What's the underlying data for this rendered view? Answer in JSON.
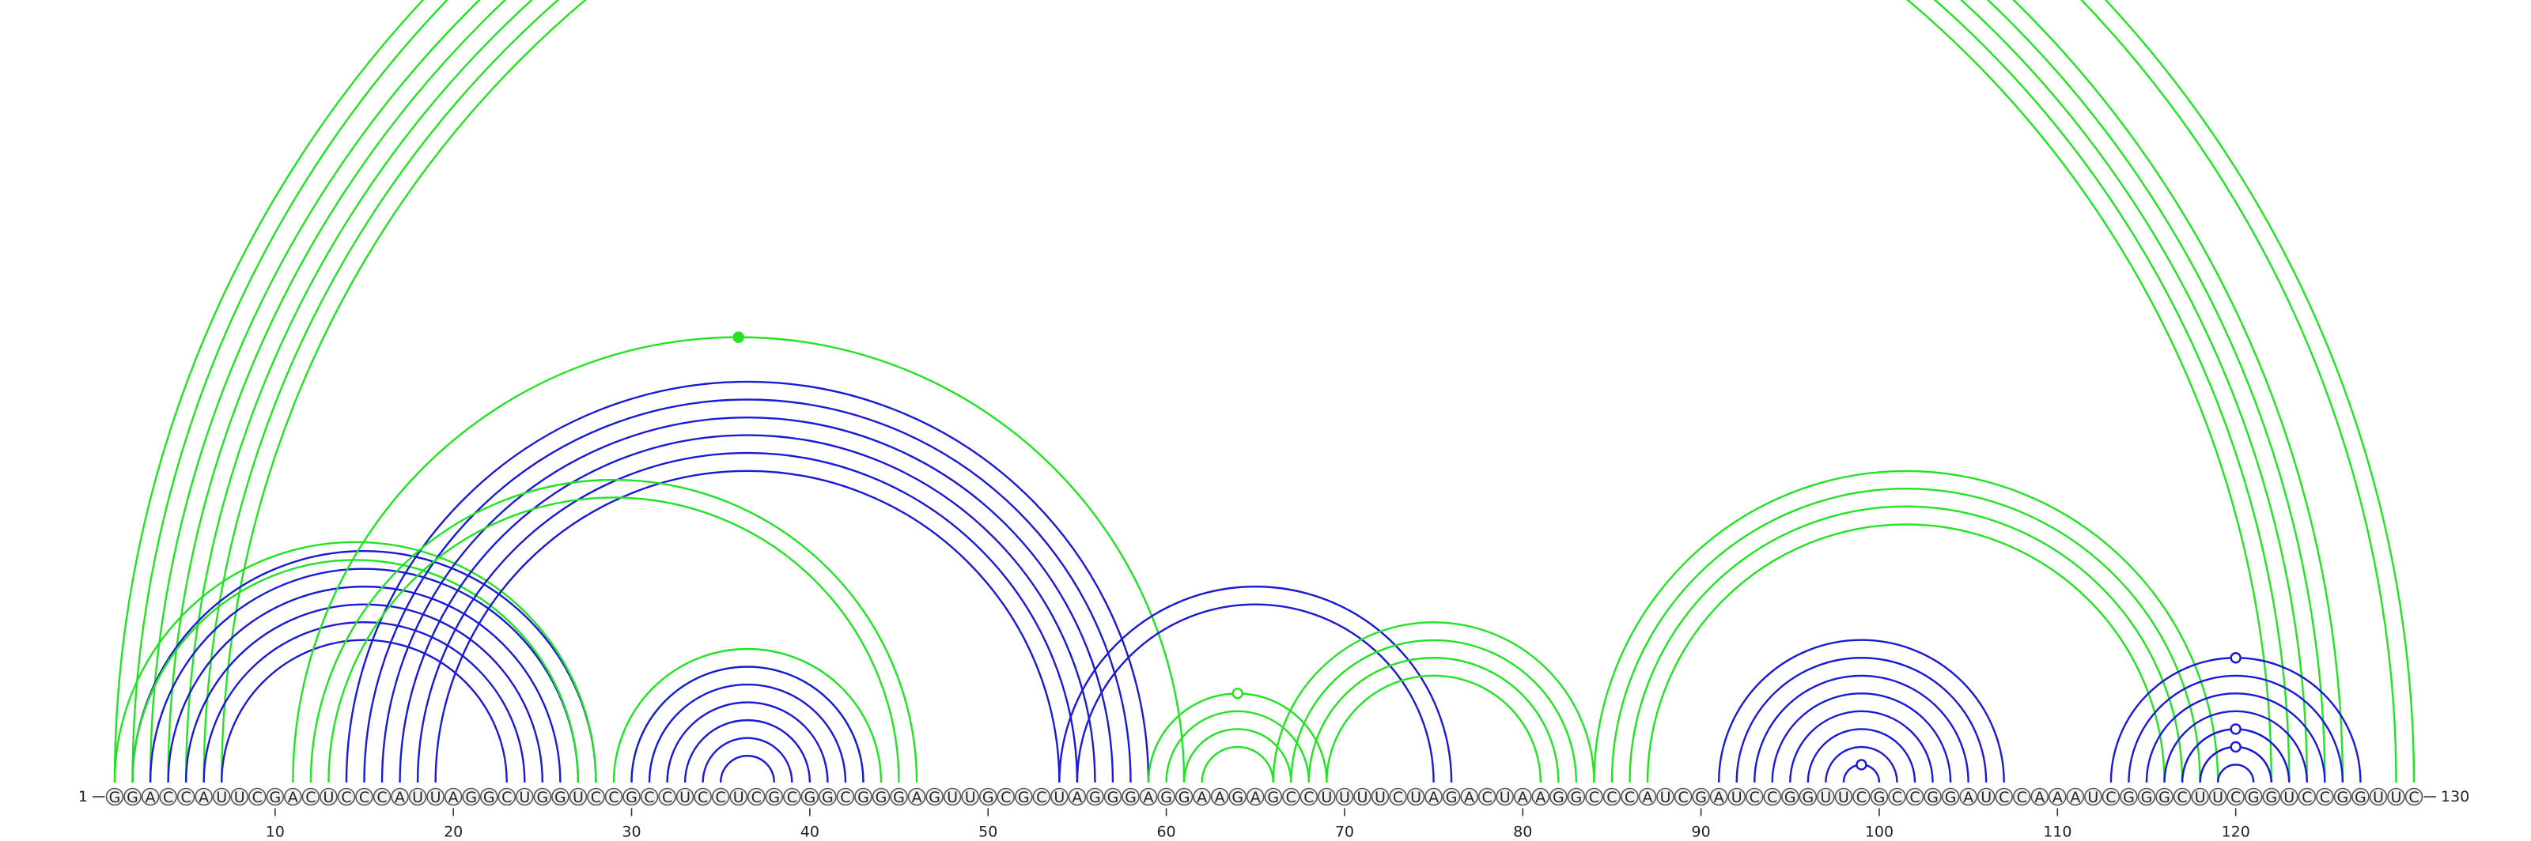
{
  "chart_data": {
    "type": "arc-diagram",
    "sequence": "GGACCAUUCGACUCCCAUUAGGCUGGUCCGCCUCCUCGCGGCGGGAGUUGCGCUAGGGAGGAAGAGCCUUUUCUAGACUAAGGCCCAUCGAUCCGGUUCGCCGGAUCCAAAUCGGGCUUCGGUCCGGUUC",
    "start_label": "1",
    "end_label": "130",
    "ticks": [
      10,
      20,
      30,
      40,
      50,
      60,
      70,
      80,
      90,
      100,
      110,
      120
    ],
    "colors": {
      "green": "#22e322",
      "blue": "#1a1ad6"
    },
    "helices": [
      {
        "color": "green",
        "pairs": [
          [
            1,
            130
          ],
          [
            2,
            129
          ],
          [
            3,
            126
          ],
          [
            4,
            125
          ],
          [
            5,
            124
          ],
          [
            6,
            123
          ],
          [
            7,
            122
          ]
        ],
        "marker": {
          "index": 0,
          "style": "open"
        }
      },
      {
        "color": "blue",
        "pairs": [
          [
            2,
            28
          ],
          [
            3,
            27
          ],
          [
            4,
            26
          ],
          [
            5,
            25
          ],
          [
            6,
            24
          ],
          [
            7,
            23
          ]
        ]
      },
      {
        "color": "green",
        "pairs": [
          [
            1,
            28
          ],
          [
            2,
            27
          ]
        ]
      },
      {
        "color": "green",
        "pairs": [
          [
            11,
            61
          ]
        ],
        "marker": {
          "index": 0,
          "style": "filled"
        }
      },
      {
        "color": "blue",
        "pairs": [
          [
            14,
            59
          ],
          [
            15,
            58
          ],
          [
            16,
            57
          ],
          [
            17,
            56
          ],
          [
            18,
            55
          ],
          [
            19,
            54
          ]
        ]
      },
      {
        "color": "green",
        "pairs": [
          [
            12,
            46
          ],
          [
            13,
            45
          ]
        ]
      },
      {
        "color": "green",
        "pairs": [
          [
            29,
            44
          ],
          [
            30,
            43
          ]
        ]
      },
      {
        "color": "blue",
        "pairs": [
          [
            30,
            43
          ],
          [
            31,
            42
          ],
          [
            32,
            41
          ],
          [
            33,
            40
          ],
          [
            34,
            39
          ],
          [
            35,
            38
          ]
        ]
      },
      {
        "color": "blue",
        "pairs": [
          [
            54,
            76
          ],
          [
            55,
            75
          ]
        ]
      },
      {
        "color": "green",
        "pairs": [
          [
            59,
            69
          ],
          [
            60,
            68
          ],
          [
            61,
            67
          ],
          [
            62,
            66
          ]
        ],
        "marker": {
          "index": 0,
          "style": "open"
        }
      },
      {
        "color": "green",
        "pairs": [
          [
            66,
            84
          ],
          [
            67,
            83
          ],
          [
            68,
            82
          ],
          [
            69,
            81
          ]
        ]
      },
      {
        "color": "green",
        "pairs": [
          [
            84,
            119
          ],
          [
            85,
            118
          ],
          [
            86,
            117
          ],
          [
            87,
            116
          ]
        ]
      },
      {
        "color": "blue",
        "pairs": [
          [
            91,
            107
          ],
          [
            92,
            106
          ],
          [
            93,
            105
          ],
          [
            94,
            104
          ],
          [
            95,
            103
          ],
          [
            96,
            102
          ],
          [
            97,
            101
          ],
          [
            98,
            100
          ]
        ],
        "marker": {
          "index": 7,
          "style": "open"
        }
      },
      {
        "color": "blue",
        "pairs": [
          [
            113,
            127
          ],
          [
            114,
            126
          ],
          [
            115,
            125
          ],
          [
            116,
            124
          ],
          [
            117,
            123
          ],
          [
            118,
            122
          ],
          [
            119,
            121
          ]
        ],
        "marker": {
          "index": 0,
          "style": "open"
        }
      },
      {
        "color": "blue",
        "pairs": [
          [
            117,
            123
          ]
        ],
        "marker": {
          "index": 0,
          "style": "open"
        }
      },
      {
        "color": "blue",
        "pairs": [
          [
            118,
            122
          ]
        ],
        "marker": {
          "index": 0,
          "style": "open"
        }
      }
    ]
  }
}
